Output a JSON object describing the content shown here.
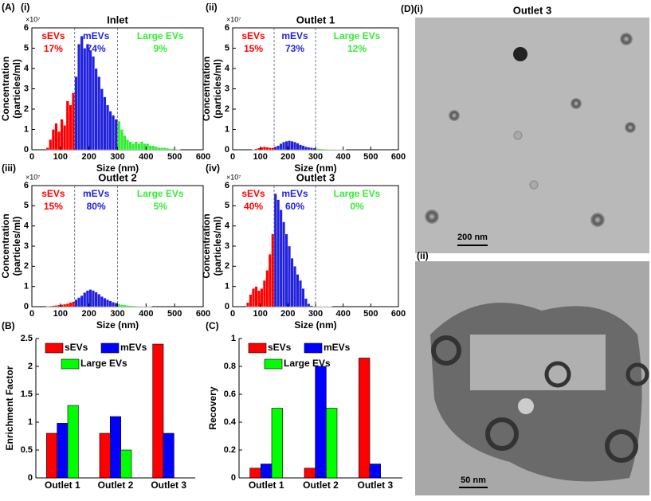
{
  "chart_data": [
    {
      "type": "histogram",
      "title": "Inlet",
      "xlabel": "Size (nm)",
      "ylabel": [
        "Concentration",
        "(particles/ml)"
      ],
      "y_multiplier": "×10⁷",
      "bins": [
        50,
        60,
        70,
        80,
        90,
        100,
        110,
        120,
        130,
        140,
        150,
        160,
        170,
        180,
        190,
        200,
        210,
        220,
        230,
        240,
        250,
        260,
        270,
        280,
        290,
        300,
        310,
        320,
        330,
        340,
        350,
        360,
        370,
        380,
        390,
        400,
        410,
        420,
        430,
        440,
        450,
        460,
        470,
        480,
        490,
        500,
        510,
        520
      ],
      "values": [
        0.1,
        0.5,
        1.0,
        1.3,
        0.9,
        1.5,
        1.2,
        2.4,
        2.2,
        2.8,
        3.6,
        5.2,
        5.6,
        5.0,
        5.2,
        4.9,
        4.6,
        4.0,
        3.6,
        3.0,
        2.6,
        2.2,
        1.9,
        1.7,
        1.5,
        1.4,
        1.0,
        0.7,
        0.5,
        0.4,
        0.3,
        0.4,
        0.3,
        0.4,
        0.3,
        0.3,
        0.2,
        0.2,
        0.15,
        0.1,
        0.1,
        0.1,
        0.08,
        0.05,
        0.05,
        0.03,
        0.02
      ],
      "thresholds": [
        150,
        300
      ],
      "regions": [
        {
          "name": "sEVs",
          "color": "#ff0000",
          "percent": 17,
          "percent_label": "17%"
        },
        {
          "name": "mEVs",
          "color": "#2222dd",
          "percent": 74,
          "percent_label": "74%"
        },
        {
          "name": "Large EVs",
          "color": "#33ee33",
          "percent": 9,
          "percent_label": "9%"
        }
      ],
      "xlim": [
        0,
        600
      ],
      "xticks": [
        0,
        100,
        200,
        300,
        400,
        500,
        600
      ],
      "ylim": [
        0,
        6
      ],
      "yticks": [
        0,
        1,
        2,
        3,
        4,
        5,
        6
      ]
    },
    {
      "type": "histogram",
      "title": "Outlet 1",
      "xlabel": "Size (nm)",
      "ylabel": [
        "Concentration",
        "(particles/ml)"
      ],
      "y_multiplier": "×10⁷",
      "bins": [
        50,
        60,
        70,
        80,
        90,
        100,
        110,
        120,
        130,
        140,
        150,
        160,
        170,
        180,
        190,
        200,
        210,
        220,
        230,
        240,
        250,
        260,
        270,
        280,
        290,
        300,
        310,
        320,
        330,
        340,
        350,
        360,
        370,
        380,
        390,
        400,
        410,
        420,
        430,
        440,
        450,
        460,
        470,
        480,
        490,
        500,
        510,
        520
      ],
      "values": [
        0,
        0,
        0.02,
        0.05,
        0.08,
        0.12,
        0.15,
        0.12,
        0.1,
        0.1,
        0.15,
        0.2,
        0.3,
        0.38,
        0.42,
        0.45,
        0.42,
        0.38,
        0.32,
        0.25,
        0.2,
        0.15,
        0.12,
        0.1,
        0.08,
        0.06,
        0.05,
        0.04,
        0.03,
        0.02,
        0.02,
        0.02,
        0.01,
        0.01,
        0.01,
        0.01,
        0,
        0,
        0,
        0,
        0,
        0,
        0,
        0,
        0,
        0,
        0
      ],
      "thresholds": [
        150,
        300
      ],
      "regions": [
        {
          "name": "sEVs",
          "color": "#ff0000",
          "percent": 15,
          "percent_label": "15%"
        },
        {
          "name": "mEVs",
          "color": "#2222dd",
          "percent": 73,
          "percent_label": "73%"
        },
        {
          "name": "Large EVs",
          "color": "#33ee33",
          "percent": 12,
          "percent_label": "12%"
        }
      ],
      "xlim": [
        0,
        600
      ],
      "xticks": [
        0,
        100,
        200,
        300,
        400,
        500,
        600
      ],
      "ylim": [
        0,
        6
      ],
      "yticks": [
        0,
        1,
        2,
        3,
        4,
        5,
        6
      ]
    },
    {
      "type": "histogram",
      "title": "Outlet 2",
      "xlabel": "Size (nm)",
      "ylabel": [
        "Concentration",
        "(particles/ml)"
      ],
      "y_multiplier": "×10⁷",
      "bins": [
        50,
        60,
        70,
        80,
        90,
        100,
        110,
        120,
        130,
        140,
        150,
        160,
        170,
        180,
        190,
        200,
        210,
        220,
        230,
        240,
        250,
        260,
        270,
        280,
        290,
        300,
        310,
        320,
        330,
        340,
        350,
        360,
        370,
        380,
        390,
        400,
        410,
        420,
        430,
        440,
        450,
        460,
        470,
        480,
        490,
        500,
        510,
        520
      ],
      "values": [
        0.02,
        0.03,
        0.05,
        0.06,
        0.08,
        0.1,
        0.12,
        0.15,
        0.2,
        0.25,
        0.35,
        0.45,
        0.55,
        0.7,
        0.8,
        0.85,
        0.8,
        0.72,
        0.62,
        0.5,
        0.42,
        0.35,
        0.28,
        0.22,
        0.18,
        0.14,
        0.1,
        0.08,
        0.06,
        0.05,
        0.04,
        0.03,
        0.02,
        0.02,
        0.01,
        0.01,
        0.01,
        0,
        0,
        0,
        0,
        0,
        0,
        0,
        0,
        0,
        0
      ],
      "thresholds": [
        150,
        300
      ],
      "regions": [
        {
          "name": "sEVs",
          "color": "#ff0000",
          "percent": 15,
          "percent_label": "15%"
        },
        {
          "name": "mEVs",
          "color": "#2222dd",
          "percent": 80,
          "percent_label": "80%"
        },
        {
          "name": "Large EVs",
          "color": "#33ee33",
          "percent": 5,
          "percent_label": "5%"
        }
      ],
      "xlim": [
        0,
        600
      ],
      "xticks": [
        0,
        100,
        200,
        300,
        400,
        500,
        600
      ],
      "ylim": [
        0,
        6
      ],
      "yticks": [
        0,
        1,
        2,
        3,
        4,
        5,
        6
      ]
    },
    {
      "type": "histogram",
      "title": "Outlet 3",
      "xlabel": "Size (nm)",
      "ylabel": [
        "Concentration",
        "(particles/ml)"
      ],
      "y_multiplier": "×10⁷",
      "bins": [
        50,
        60,
        70,
        80,
        90,
        100,
        110,
        120,
        130,
        140,
        150,
        160,
        170,
        180,
        190,
        200,
        210,
        220,
        230,
        240,
        250,
        260,
        270,
        280,
        290,
        300,
        310,
        320,
        330,
        340,
        350,
        360,
        370,
        380,
        390,
        400,
        410,
        420,
        430,
        440,
        450,
        460,
        470,
        480,
        490,
        500,
        510,
        520
      ],
      "values": [
        0.2,
        0.6,
        0.9,
        1.0,
        0.8,
        0.9,
        1.3,
        1.8,
        2.6,
        3.6,
        5.6,
        5.3,
        4.8,
        4.2,
        3.6,
        3.0,
        2.4,
        2.0,
        1.6,
        1.3,
        0.9,
        0.4,
        0.15,
        0.05,
        0.02,
        0.02,
        0.02,
        0.01,
        0.01,
        0.01,
        0.01,
        0,
        0,
        0,
        0,
        0,
        0,
        0,
        0,
        0,
        0,
        0,
        0,
        0,
        0,
        0,
        0
      ],
      "thresholds": [
        150,
        300
      ],
      "regions": [
        {
          "name": "sEVs",
          "color": "#ff0000",
          "percent": 40,
          "percent_label": "40%"
        },
        {
          "name": "mEVs",
          "color": "#2222dd",
          "percent": 60,
          "percent_label": "60%"
        },
        {
          "name": "Large EVs",
          "color": "#33ee33",
          "percent": 0,
          "percent_label": "0%"
        }
      ],
      "xlim": [
        0,
        600
      ],
      "xticks": [
        0,
        100,
        200,
        300,
        400,
        500,
        600
      ],
      "ylim": [
        0,
        6
      ],
      "yticks": [
        0,
        1,
        2,
        3,
        4,
        5,
        6
      ]
    },
    {
      "type": "bar",
      "ylabel": "Enrichment Factor",
      "categories": [
        "Outlet 1",
        "Outlet 2",
        "Outlet 3"
      ],
      "series": [
        {
          "name": "sEVs",
          "color": "#ff0000",
          "values": [
            0.8,
            0.8,
            2.4
          ]
        },
        {
          "name": "mEVs",
          "color": "#0000ff",
          "values": [
            0.98,
            1.1,
            0.8
          ]
        },
        {
          "name": "Large EVs",
          "color": "#00ff00",
          "values": [
            1.3,
            0.5,
            0
          ]
        }
      ],
      "ylim": [
        0,
        2.5
      ],
      "yticks": [
        0,
        0.5,
        1,
        1.5,
        2,
        2.5
      ]
    },
    {
      "type": "bar",
      "ylabel": "Recovery",
      "categories": [
        "Outlet 1",
        "Outlet 2",
        "Outlet 3"
      ],
      "series": [
        {
          "name": "sEVs",
          "color": "#ff0000",
          "values": [
            0.07,
            0.07,
            0.86
          ]
        },
        {
          "name": "mEVs",
          "color": "#0000ff",
          "values": [
            0.1,
            0.8,
            0.1
          ]
        },
        {
          "name": "Large EVs",
          "color": "#00ff00",
          "values": [
            0.5,
            0.5,
            0
          ]
        }
      ],
      "ylim": [
        0,
        1
      ],
      "yticks": [
        0,
        0.2,
        0.4,
        0.6,
        0.8,
        1
      ]
    }
  ],
  "panel_labels": {
    "a": "(A)",
    "a1": "(i)",
    "a2": "(ii)",
    "a3": "(iii)",
    "a4": "(iv)",
    "b": "(B)",
    "c": "(C)",
    "d1": "(D)(i)",
    "d2": "(ii)"
  },
  "images": {
    "top_title": "Outlet 3",
    "top_scale": "200 nm",
    "bottom_scale": "50 nm"
  }
}
